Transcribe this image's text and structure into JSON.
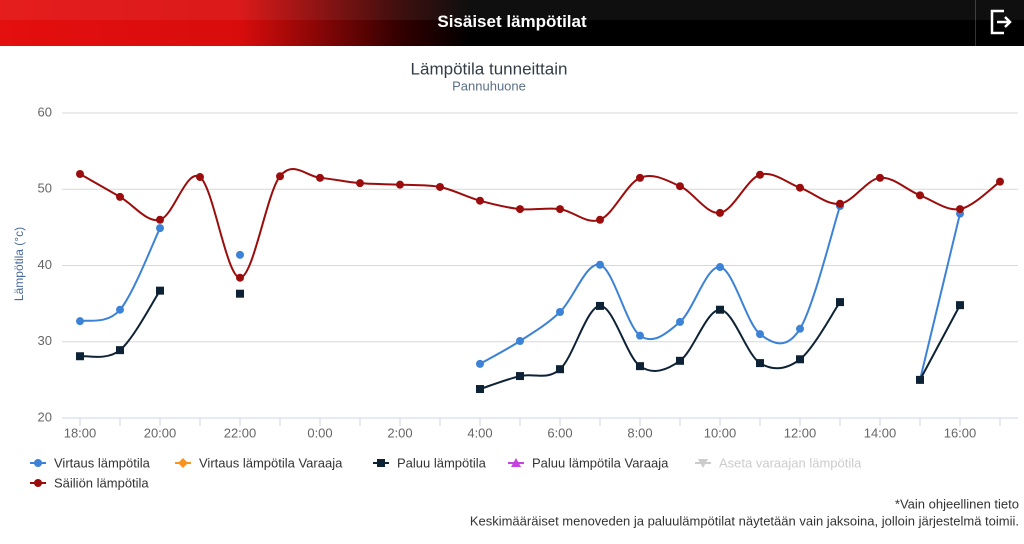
{
  "header": {
    "title": "Sisäiset lämpötilat"
  },
  "chart_data": {
    "type": "line",
    "title": "Lämpötila tunneittain",
    "subtitle": "Pannuhuone",
    "y_label": "Lämpötila (°c)",
    "categories": [
      "18:00",
      null,
      "20:00",
      null,
      "22:00",
      null,
      "0:00",
      null,
      "2:00",
      null,
      "4:00",
      null,
      "6:00",
      null,
      "8:00",
      null,
      "10:00",
      null,
      "12:00",
      null,
      "14:00",
      null,
      "16:00",
      null
    ],
    "ylim": [
      20,
      60
    ],
    "yticks": [
      20,
      30,
      40,
      50,
      60
    ],
    "grid": true,
    "series": [
      {
        "name": "Virtaus lämpötila",
        "color": "#3c82d6",
        "marker": "circle",
        "values": [
          32.7,
          34.2,
          44.9,
          null,
          41.4,
          null,
          null,
          null,
          null,
          null,
          27.1,
          30.1,
          33.9,
          40.1,
          30.8,
          32.6,
          39.8,
          31.0,
          31.7,
          47.8,
          null,
          25.0,
          46.8,
          null
        ]
      },
      {
        "name": "Virtaus lämpötila Varaaja",
        "color": "#f7931e",
        "marker": "diamond",
        "values": [
          null,
          null,
          null,
          null,
          null,
          null,
          null,
          null,
          null,
          null,
          null,
          null,
          null,
          null,
          null,
          null,
          null,
          null,
          null,
          null,
          null,
          null,
          null,
          null
        ]
      },
      {
        "name": "Paluu lämpötila",
        "color": "#0e2236",
        "marker": "square",
        "values": [
          28.1,
          28.9,
          36.7,
          null,
          36.3,
          null,
          null,
          null,
          null,
          null,
          23.8,
          25.5,
          26.4,
          34.7,
          26.8,
          27.5,
          34.2,
          27.2,
          27.7,
          35.2,
          null,
          25.0,
          34.8,
          null
        ]
      },
      {
        "name": "Paluu lämpötila Varaaja",
        "color": "#c643e0",
        "marker": "triangle",
        "values": [
          null,
          null,
          null,
          null,
          null,
          null,
          null,
          null,
          null,
          null,
          null,
          null,
          null,
          null,
          null,
          null,
          null,
          null,
          null,
          null,
          null,
          null,
          null,
          null
        ]
      },
      {
        "name": "Aseta varaajan lämpötila",
        "color": "#cccccc",
        "marker": "triangle-down",
        "visible": false,
        "values": [
          null,
          null,
          null,
          null,
          null,
          null,
          null,
          null,
          null,
          null,
          null,
          null,
          null,
          null,
          null,
          null,
          null,
          null,
          null,
          null,
          null,
          null,
          null,
          null
        ]
      },
      {
        "name": "Säiliön lämpötila",
        "color": "#9b0d0d",
        "marker": "circle",
        "values": [
          52.0,
          49.0,
          46.0,
          51.6,
          38.4,
          51.7,
          51.5,
          50.8,
          50.6,
          50.3,
          48.5,
          47.4,
          47.4,
          46.0,
          51.5,
          50.4,
          46.9,
          51.9,
          50.2,
          48.1,
          51.5,
          49.2,
          47.4,
          51.0
        ]
      }
    ]
  },
  "footer": {
    "notes": [
      "*Vain ohjeellinen tieto",
      "Keskimääräiset menoveden ja paluulämpötilat näytetään vain jaksoina, jolloin järjestelmä toimii."
    ]
  }
}
